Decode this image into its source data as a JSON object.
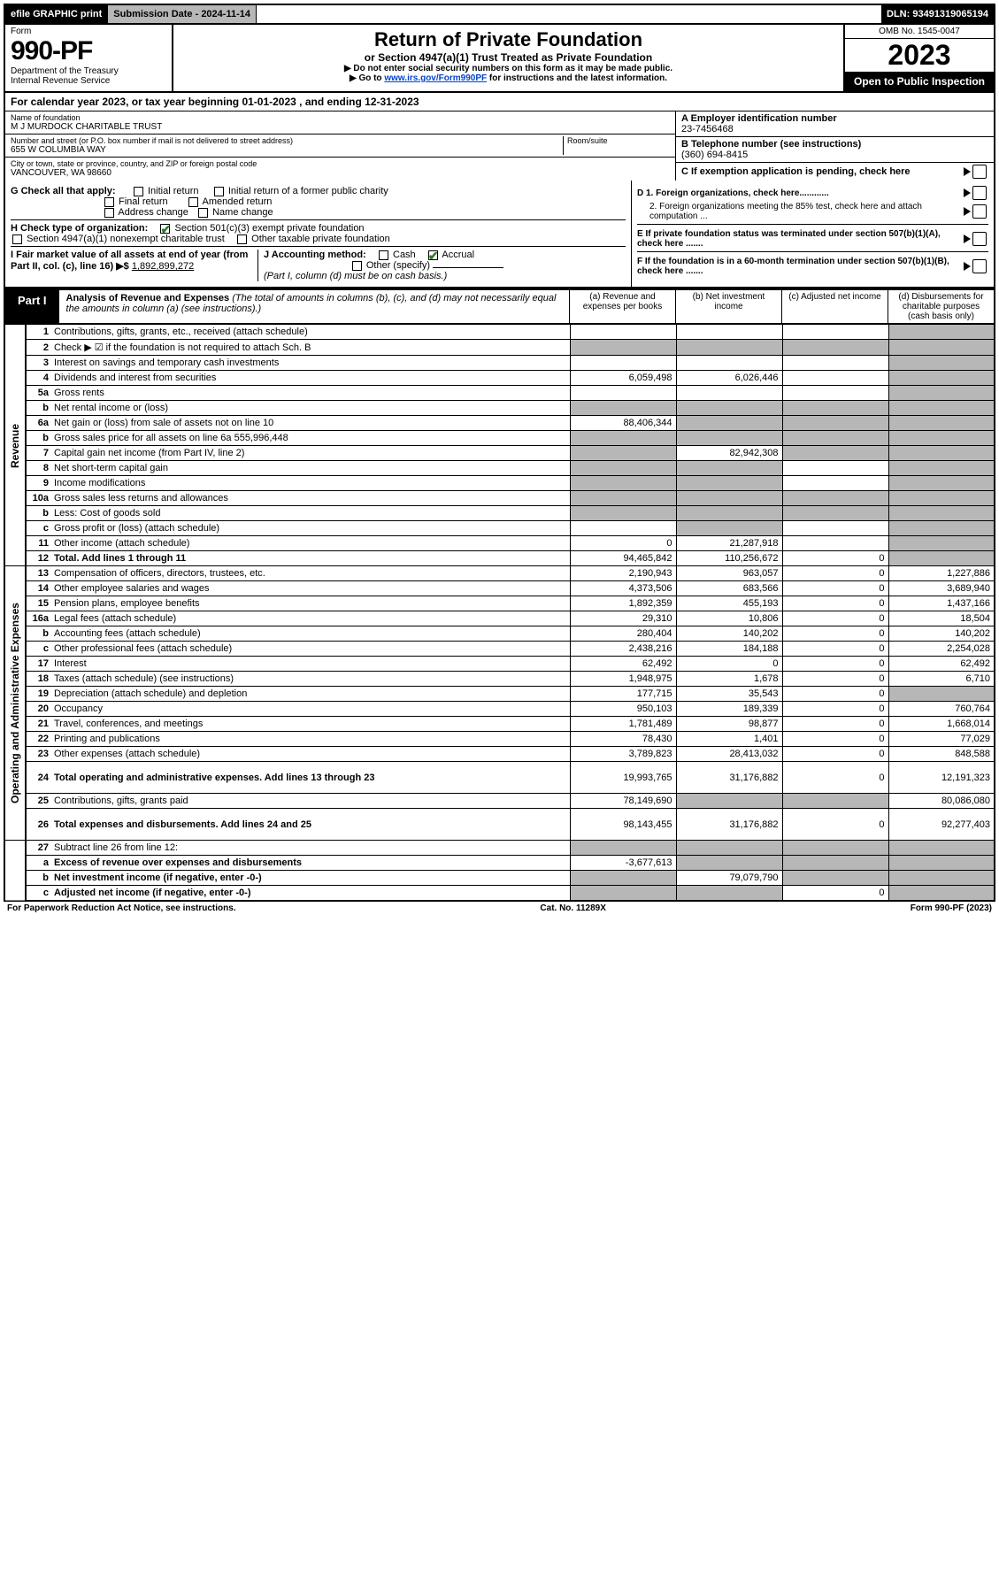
{
  "topbar": {
    "efile": "efile GRAPHIC print",
    "submission": "Submission Date - 2024-11-14",
    "dln": "DLN: 93491319065194"
  },
  "header": {
    "form_label": "Form",
    "form_number": "990-PF",
    "dept": "Department of the Treasury",
    "irs": "Internal Revenue Service",
    "title": "Return of Private Foundation",
    "subtitle": "or Section 4947(a)(1) Trust Treated as Private Foundation",
    "note1": "▶ Do not enter social security numbers on this form as it may be made public.",
    "note2_prefix": "▶ Go to ",
    "note2_link": "www.irs.gov/Form990PF",
    "note2_suffix": " for instructions and the latest information.",
    "omb": "OMB No. 1545-0047",
    "year": "2023",
    "open": "Open to Public Inspection"
  },
  "calendar": "For calendar year 2023, or tax year beginning 01-01-2023            , and ending 12-31-2023",
  "id": {
    "name_label": "Name of foundation",
    "name": "M J MURDOCK CHARITABLE TRUST",
    "street_label": "Number and street (or P.O. box number if mail is not delivered to street address)",
    "street": "655 W COLUMBIA WAY",
    "room_label": "Room/suite",
    "city_label": "City or town, state or province, country, and ZIP or foreign postal code",
    "city": "VANCOUVER, WA  98660",
    "a_label": "A Employer identification number",
    "a_value": "23-7456468",
    "b_label": "B Telephone number (see instructions)",
    "b_value": "(360) 694-8415",
    "c_label": "C If exemption application is pending, check here"
  },
  "checks": {
    "g_label": "G Check all that apply:",
    "g_opts": [
      "Initial return",
      "Initial return of a former public charity",
      "Final return",
      "Amended return",
      "Address change",
      "Name change"
    ],
    "h_label": "H Check type of organization:",
    "h_opt1": "Section 501(c)(3) exempt private foundation",
    "h_opt2": "Section 4947(a)(1) nonexempt charitable trust",
    "h_opt3": "Other taxable private foundation",
    "i_label": "I Fair market value of all assets at end of year (from Part II, col. (c), line 16) ▶$",
    "i_value": "1,892,899,272",
    "j_label": "J Accounting method:",
    "j_cash": "Cash",
    "j_accrual": "Accrual",
    "j_other": "Other (specify)",
    "j_note": "(Part I, column (d) must be on cash basis.)",
    "d1": "D 1. Foreign organizations, check here............",
    "d2": "2. Foreign organizations meeting the 85% test, check here and attach computation ...",
    "e": "E  If private foundation status was terminated under section 507(b)(1)(A), check here .......",
    "f": "F  If the foundation is in a 60-month termination under section 507(b)(1)(B), check here .......",
    "arrow": "▶"
  },
  "part1": {
    "tab": "Part I",
    "title_bold": "Analysis of Revenue and Expenses",
    "title_rest": " (The total of amounts in columns (b), (c), and (d) may not necessarily equal the amounts in column (a) (see instructions).)",
    "col_a": "(a)  Revenue and expenses per books",
    "col_b": "(b)  Net investment income",
    "col_c": "(c)  Adjusted net income",
    "col_d": "(d)  Disbursements for charitable purposes (cash basis only)"
  },
  "side_labels": {
    "revenue": "Revenue",
    "expenses": "Operating and Administrative Expenses"
  },
  "rows": [
    {
      "n": "1",
      "desc": "Contributions, gifts, grants, etc., received (attach schedule)",
      "a": "",
      "b": "",
      "c": "",
      "d": "",
      "greyD": true
    },
    {
      "n": "2",
      "desc": "Check ▶ ☑ if the foundation is not required to attach Sch. B",
      "a": "",
      "b": "",
      "c": "",
      "d": "",
      "greyA": true,
      "greyB": true,
      "greyC": true,
      "greyD": true,
      "bold_not": true
    },
    {
      "n": "3",
      "desc": "Interest on savings and temporary cash investments",
      "a": "",
      "b": "",
      "c": "",
      "d": "",
      "greyD": true
    },
    {
      "n": "4",
      "desc": "Dividends and interest from securities",
      "a": "6,059,498",
      "b": "6,026,446",
      "c": "",
      "d": "",
      "greyD": true
    },
    {
      "n": "5a",
      "desc": "Gross rents",
      "a": "",
      "b": "",
      "c": "",
      "d": "",
      "greyD": true
    },
    {
      "n": "b",
      "desc": "Net rental income or (loss)",
      "a": "",
      "b": "",
      "c": "",
      "d": "",
      "greyA": true,
      "greyB": true,
      "greyC": true,
      "greyD": true,
      "inline_box": true
    },
    {
      "n": "6a",
      "desc": "Net gain or (loss) from sale of assets not on line 10",
      "a": "88,406,344",
      "b": "",
      "c": "",
      "d": "",
      "greyB": true,
      "greyC": true,
      "greyD": true
    },
    {
      "n": "b",
      "desc": "Gross sales price for all assets on line 6a        555,996,448",
      "a": "",
      "b": "",
      "c": "",
      "d": "",
      "greyA": true,
      "greyB": true,
      "greyC": true,
      "greyD": true,
      "inline_box": true
    },
    {
      "n": "7",
      "desc": "Capital gain net income (from Part IV, line 2)",
      "a": "",
      "b": "82,942,308",
      "c": "",
      "d": "",
      "greyA": true,
      "greyC": true,
      "greyD": true
    },
    {
      "n": "8",
      "desc": "Net short-term capital gain",
      "a": "",
      "b": "",
      "c": "",
      "d": "",
      "greyA": true,
      "greyB": true,
      "greyD": true
    },
    {
      "n": "9",
      "desc": "Income modifications",
      "a": "",
      "b": "",
      "c": "",
      "d": "",
      "greyA": true,
      "greyB": true,
      "greyD": true
    },
    {
      "n": "10a",
      "desc": "Gross sales less returns and allowances",
      "a": "",
      "b": "",
      "c": "",
      "d": "",
      "greyA": true,
      "greyB": true,
      "greyC": true,
      "greyD": true,
      "inline_box": true
    },
    {
      "n": "b",
      "desc": "Less: Cost of goods sold",
      "a": "",
      "b": "",
      "c": "",
      "d": "",
      "greyA": true,
      "greyB": true,
      "greyC": true,
      "greyD": true,
      "inline_box": true
    },
    {
      "n": "c",
      "desc": "Gross profit or (loss) (attach schedule)",
      "a": "",
      "b": "",
      "c": "",
      "d": "",
      "greyB": true,
      "greyD": true
    },
    {
      "n": "11",
      "desc": "Other income (attach schedule)",
      "a": "0",
      "b": "21,287,918",
      "c": "",
      "d": "",
      "greyD": true
    },
    {
      "n": "12",
      "desc": "Total. Add lines 1 through 11",
      "a": "94,465,842",
      "b": "110,256,672",
      "c": "0",
      "d": "",
      "greyD": true,
      "bold": true
    },
    {
      "n": "13",
      "desc": "Compensation of officers, directors, trustees, etc.",
      "a": "2,190,943",
      "b": "963,057",
      "c": "0",
      "d": "1,227,886"
    },
    {
      "n": "14",
      "desc": "Other employee salaries and wages",
      "a": "4,373,506",
      "b": "683,566",
      "c": "0",
      "d": "3,689,940"
    },
    {
      "n": "15",
      "desc": "Pension plans, employee benefits",
      "a": "1,892,359",
      "b": "455,193",
      "c": "0",
      "d": "1,437,166"
    },
    {
      "n": "16a",
      "desc": "Legal fees (attach schedule)",
      "a": "29,310",
      "b": "10,806",
      "c": "0",
      "d": "18,504"
    },
    {
      "n": "b",
      "desc": "Accounting fees (attach schedule)",
      "a": "280,404",
      "b": "140,202",
      "c": "0",
      "d": "140,202"
    },
    {
      "n": "c",
      "desc": "Other professional fees (attach schedule)",
      "a": "2,438,216",
      "b": "184,188",
      "c": "0",
      "d": "2,254,028"
    },
    {
      "n": "17",
      "desc": "Interest",
      "a": "62,492",
      "b": "0",
      "c": "0",
      "d": "62,492"
    },
    {
      "n": "18",
      "desc": "Taxes (attach schedule) (see instructions)",
      "a": "1,948,975",
      "b": "1,678",
      "c": "0",
      "d": "6,710"
    },
    {
      "n": "19",
      "desc": "Depreciation (attach schedule) and depletion",
      "a": "177,715",
      "b": "35,543",
      "c": "0",
      "d": "",
      "greyD": true
    },
    {
      "n": "20",
      "desc": "Occupancy",
      "a": "950,103",
      "b": "189,339",
      "c": "0",
      "d": "760,764"
    },
    {
      "n": "21",
      "desc": "Travel, conferences, and meetings",
      "a": "1,781,489",
      "b": "98,877",
      "c": "0",
      "d": "1,668,014"
    },
    {
      "n": "22",
      "desc": "Printing and publications",
      "a": "78,430",
      "b": "1,401",
      "c": "0",
      "d": "77,029"
    },
    {
      "n": "23",
      "desc": "Other expenses (attach schedule)",
      "a": "3,789,823",
      "b": "28,413,032",
      "c": "0",
      "d": "848,588"
    },
    {
      "n": "24",
      "desc": "Total operating and administrative expenses. Add lines 13 through 23",
      "a": "19,993,765",
      "b": "31,176,882",
      "c": "0",
      "d": "12,191,323",
      "bold": true,
      "tall": true
    },
    {
      "n": "25",
      "desc": "Contributions, gifts, grants paid",
      "a": "78,149,690",
      "b": "",
      "c": "",
      "d": "80,086,080",
      "greyB": true,
      "greyC": true
    },
    {
      "n": "26",
      "desc": "Total expenses and disbursements. Add lines 24 and 25",
      "a": "98,143,455",
      "b": "31,176,882",
      "c": "0",
      "d": "92,277,403",
      "bold": true,
      "tall": true
    },
    {
      "n": "27",
      "desc": "Subtract line 26 from line 12:",
      "a": "",
      "b": "",
      "c": "",
      "d": "",
      "greyA": true,
      "greyB": true,
      "greyC": true,
      "greyD": true
    },
    {
      "n": "a",
      "desc": "Excess of revenue over expenses and disbursements",
      "a": "-3,677,613",
      "b": "",
      "c": "",
      "d": "",
      "greyB": true,
      "greyC": true,
      "greyD": true,
      "bold": true
    },
    {
      "n": "b",
      "desc": "Net investment income (if negative, enter -0-)",
      "a": "",
      "b": "79,079,790",
      "c": "",
      "d": "",
      "greyA": true,
      "greyC": true,
      "greyD": true,
      "bold": true
    },
    {
      "n": "c",
      "desc": "Adjusted net income (if negative, enter -0-)",
      "a": "",
      "b": "",
      "c": "0",
      "d": "",
      "greyA": true,
      "greyB": true,
      "greyD": true,
      "bold": true
    }
  ],
  "footer": {
    "left": "For Paperwork Reduction Act Notice, see instructions.",
    "mid": "Cat. No. 11289X",
    "right": "Form 990-PF (2023)"
  },
  "colors": {
    "grey": "#b7b7b7",
    "link": "#0044cc",
    "check": "#2a7a2a"
  }
}
